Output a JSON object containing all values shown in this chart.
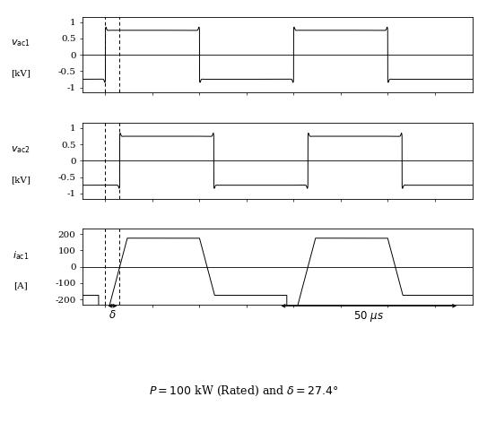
{
  "title": "$P = 100$ kW (Rated) and $\\delta = 27.4°$",
  "vac1_label": "$v_{\\mathrm{ac1}}$\n[kV]",
  "vac2_label": "$v_{\\mathrm{ac2}}$\n[kV]",
  "iac1_label": "$i_{\\mathrm{ac1}}$\n[A]",
  "vac1_yticks": [
    -1,
    -0.5,
    0,
    0.5,
    1
  ],
  "vac2_yticks": [
    -1,
    -0.5,
    0,
    0.5,
    1
  ],
  "iac1_yticks": [
    -200,
    -100,
    0,
    100,
    200
  ],
  "period_us": 100,
  "half_period_us": 50,
  "delta_ratio": 0.152,
  "amp_v": 0.75,
  "amp_i": 175.0,
  "line_color": "#000000",
  "bg_color": "#ffffff"
}
